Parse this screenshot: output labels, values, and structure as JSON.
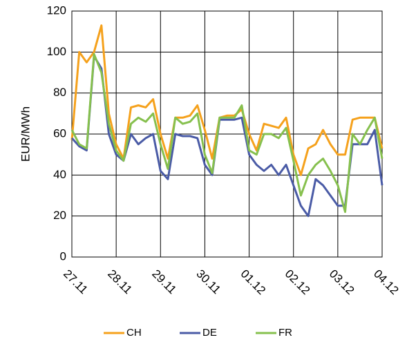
{
  "chart_data": {
    "type": "line",
    "y_label": "EUR/MWh",
    "x": [
      0,
      4,
      8,
      12,
      16,
      20,
      24,
      28,
      32,
      36,
      40,
      44,
      48,
      52,
      56,
      60,
      64,
      68,
      72,
      76,
      80,
      84,
      88,
      92,
      96,
      100,
      104,
      108,
      112,
      116,
      120,
      124,
      128,
      132,
      136,
      140,
      144,
      148,
      152,
      156,
      160,
      164,
      168
    ],
    "series": [
      {
        "name": "CH",
        "color": "#f5a11c",
        "values": [
          57,
          100,
          95,
          100,
          113,
          70,
          55,
          48,
          73,
          74,
          73,
          77,
          60,
          48,
          68,
          68,
          69,
          74,
          62,
          48,
          68,
          69,
          69,
          72,
          60,
          52,
          65,
          64,
          63,
          68,
          50,
          40,
          53,
          55,
          62,
          55,
          50,
          50,
          67,
          68,
          68,
          68,
          53
        ]
      },
      {
        "name": "DE",
        "color": "#4a5ba6",
        "values": [
          58,
          54,
          52,
          98,
          92,
          60,
          50,
          47,
          60,
          55,
          58,
          60,
          42,
          38,
          60,
          59,
          59,
          58,
          45,
          40,
          67,
          67,
          67,
          68,
          50,
          45,
          42,
          45,
          40,
          45,
          35,
          25,
          20,
          38,
          35,
          30,
          25,
          25,
          55,
          55,
          55,
          62,
          35
        ]
      },
      {
        "name": "FR",
        "color": "#86c04e",
        "values": [
          62,
          55,
          53,
          99,
          90,
          65,
          52,
          47,
          65,
          68,
          66,
          70,
          55,
          43,
          68,
          65,
          66,
          70,
          50,
          41,
          68,
          68,
          68,
          74,
          52,
          50,
          60,
          60,
          58,
          63,
          47,
          30,
          40,
          45,
          48,
          42,
          35,
          22,
          60,
          55,
          62,
          68,
          48
        ]
      }
    ],
    "xlim": [
      0,
      168
    ],
    "xticks": [
      {
        "value": 0,
        "label": "27.11"
      },
      {
        "value": 24,
        "label": "28.11"
      },
      {
        "value": 48,
        "label": "29.11"
      },
      {
        "value": 72,
        "label": "30.11"
      },
      {
        "value": 96,
        "label": "01.12"
      },
      {
        "value": 120,
        "label": "02.12"
      },
      {
        "value": 144,
        "label": "03.12"
      },
      {
        "value": 168,
        "label": "04.12"
      }
    ],
    "ylim": [
      0,
      120
    ],
    "yticks": [
      0,
      20,
      40,
      60,
      80,
      100,
      120
    ],
    "grid": true,
    "legend": "bottom"
  }
}
